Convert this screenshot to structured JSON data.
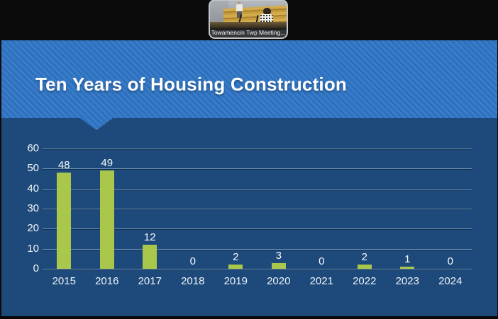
{
  "video_thumbnail": {
    "label": "Towamencin Twp Meeting..."
  },
  "slide": {
    "title": "Ten Years of Housing Construction"
  },
  "colors": {
    "header_blue": "#2f75c5",
    "slide_blue": "#1d4a7a",
    "bar_green": "#a9c84b",
    "gridline": "#7da0c4",
    "text_white": "#ffffff",
    "background_black": "#0a0a0a"
  },
  "chart_data": {
    "type": "bar",
    "title": "Ten Years of Housing Construction",
    "categories": [
      "2015",
      "2016",
      "2017",
      "2018",
      "2019",
      "2020",
      "2021",
      "2022",
      "2023",
      "2024"
    ],
    "values": [
      48,
      49,
      12,
      0,
      2,
      3,
      0,
      2,
      1,
      0
    ],
    "xlabel": "",
    "ylabel": "",
    "ylim": [
      0,
      60
    ],
    "yticks": [
      0,
      10,
      20,
      30,
      40,
      50,
      60
    ],
    "grid": true,
    "data_labels": true,
    "legend": false
  }
}
